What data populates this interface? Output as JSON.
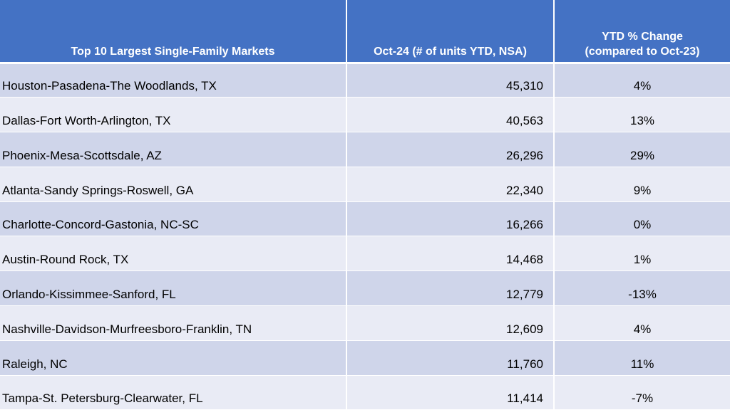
{
  "chart_data": {
    "type": "table",
    "columns": [
      "Top 10 Largest Single-Family Markets",
      "Oct-24 (# of units YTD, NSA)",
      "YTD % Change\n(compared to Oct-23)"
    ],
    "rows": [
      {
        "market": "Houston-Pasadena-The Woodlands, TX",
        "units": "45,310",
        "change": "4%"
      },
      {
        "market": "Dallas-Fort Worth-Arlington, TX",
        "units": "40,563",
        "change": "13%"
      },
      {
        "market": "Phoenix-Mesa-Scottsdale, AZ",
        "units": "26,296",
        "change": "29%"
      },
      {
        "market": "Atlanta-Sandy Springs-Roswell, GA",
        "units": "22,340",
        "change": "9%"
      },
      {
        "market": "Charlotte-Concord-Gastonia, NC-SC",
        "units": "16,266",
        "change": "0%"
      },
      {
        "market": "Austin-Round Rock, TX",
        "units": "14,468",
        "change": "1%"
      },
      {
        "market": "Orlando-Kissimmee-Sanford, FL",
        "units": "12,779",
        "change": "-13%"
      },
      {
        "market": "Nashville-Davidson-Murfreesboro-Franklin, TN",
        "units": "12,609",
        "change": "4%"
      },
      {
        "market": "Raleigh, NC",
        "units": "11,760",
        "change": "11%"
      },
      {
        "market": "Tampa-St. Petersburg-Clearwater, FL",
        "units": "11,414",
        "change": "-7%"
      }
    ],
    "colors": {
      "header": "#4472c4",
      "band_dark": "#cfd5ea",
      "band_light": "#e9ebf5"
    }
  }
}
